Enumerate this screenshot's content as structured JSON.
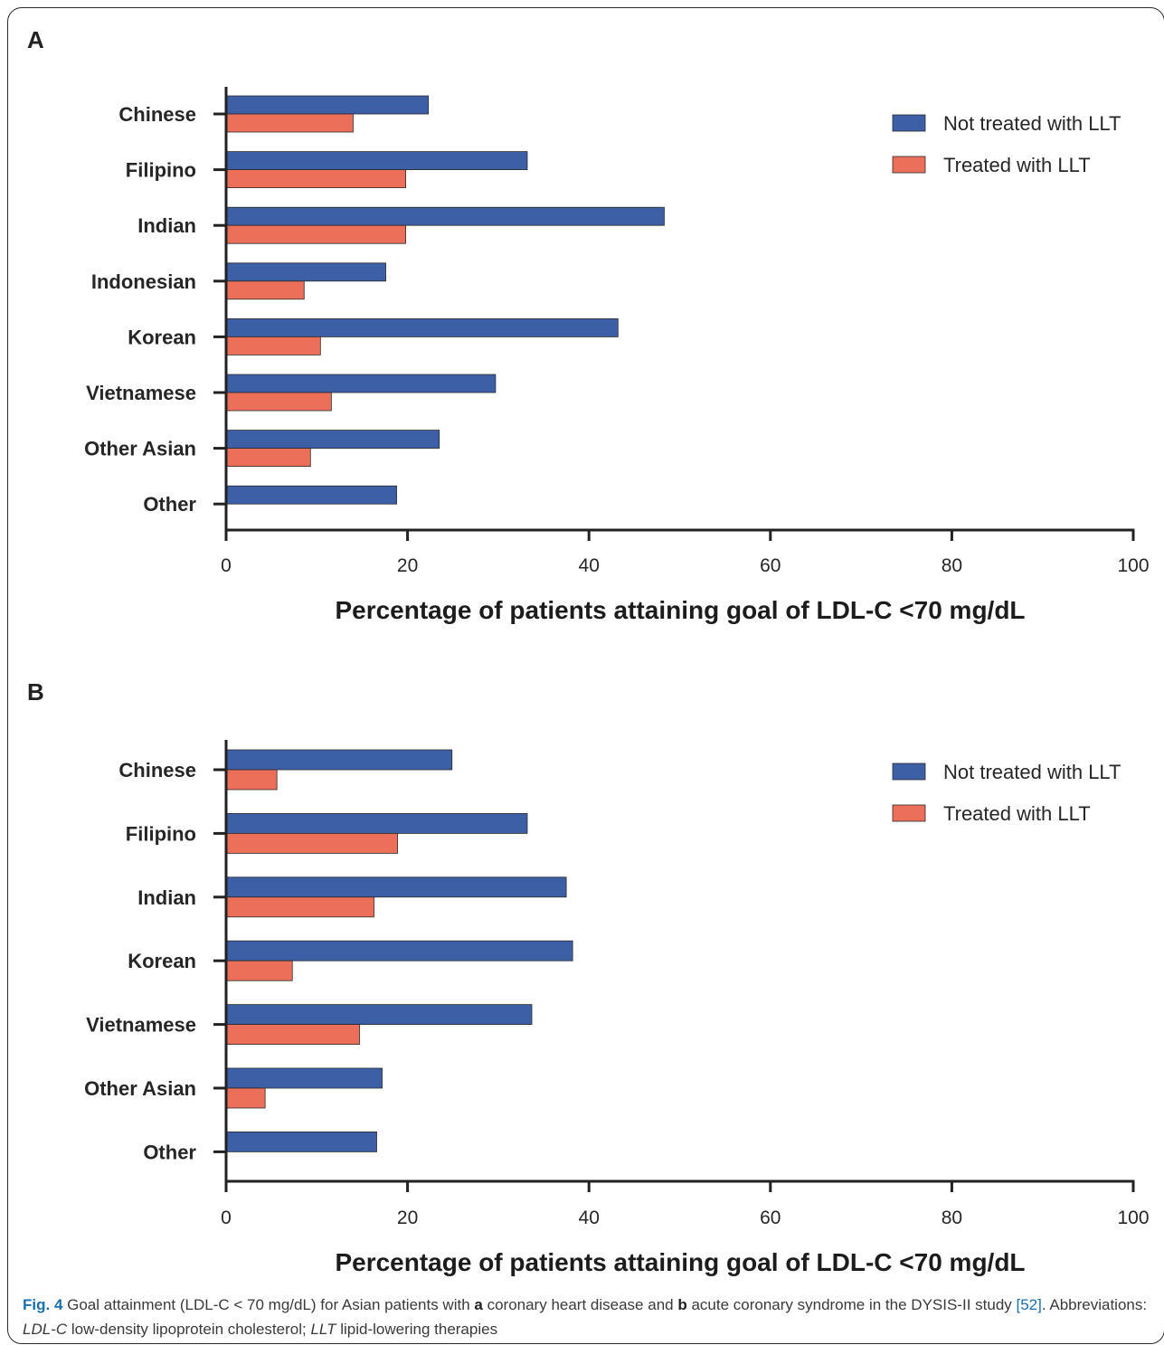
{
  "colors": {
    "not_treated": "#3d5fa6",
    "treated": "#ec6f59",
    "axis": "#222222"
  },
  "chart_data": [
    {
      "type": "bar",
      "orientation": "horizontal",
      "panel": "A",
      "categories": [
        "Chinese",
        "Filipino",
        "Indian",
        "Indonesian",
        "Korean",
        "Vietnamese",
        "Other Asian",
        "Other"
      ],
      "series": [
        {
          "name": "Not treated with LLT",
          "values": [
            22.3,
            33.2,
            48.3,
            17.6,
            43.2,
            29.7,
            23.5,
            18.8
          ]
        },
        {
          "name": "Treated with LLT",
          "values": [
            14.0,
            19.8,
            19.8,
            8.6,
            10.4,
            11.6,
            9.3,
            null
          ]
        }
      ],
      "xlabel": "Percentage of patients attaining goal of LDL-C <70 mg/dL",
      "xlim": [
        0,
        100
      ],
      "xticks": [
        "0",
        "20",
        "40",
        "60",
        "80",
        "100"
      ],
      "legend": "top-right",
      "grid": false
    },
    {
      "type": "bar",
      "orientation": "horizontal",
      "panel": "B",
      "categories": [
        "Chinese",
        "Filipino",
        "Indian",
        "Korean",
        "Vietnamese",
        "Other Asian",
        "Other"
      ],
      "series": [
        {
          "name": "Not treated with LLT",
          "values": [
            24.9,
            33.2,
            37.5,
            38.2,
            33.7,
            17.2,
            16.6
          ]
        },
        {
          "name": "Treated with LLT",
          "values": [
            5.6,
            18.9,
            16.3,
            7.3,
            14.7,
            4.3,
            null
          ]
        }
      ],
      "xlabel": "Percentage of patients attaining goal of LDL-C <70 mg/dL",
      "xlim": [
        0,
        100
      ],
      "xticks": [
        "0",
        "20",
        "40",
        "60",
        "80",
        "100"
      ],
      "legend": "top-right",
      "grid": false
    }
  ],
  "caption": {
    "fig_label": "Fig. 4",
    "text1": " Goal attainment (LDL-C < 70 mg/dL) for Asian patients with ",
    "bold_a": "a",
    "text2": " coronary heart disease and ",
    "bold_b": "b",
    "text3": " acute coronary syndrome in the DYSIS-II study ",
    "ref": "[52]",
    "text4": ". Abbreviations: ",
    "abbr1": "LDL-C",
    "text5": " low-density lipoprotein cholesterol; ",
    "abbr2": "LLT",
    "text6": " lipid-lowering therapies"
  }
}
